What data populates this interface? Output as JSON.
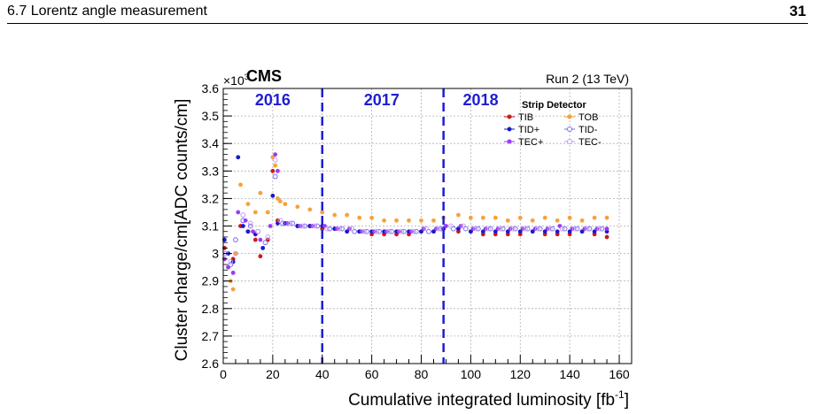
{
  "header": {
    "section_title": "6.7   Lorentz angle measurement",
    "page_number": "31"
  },
  "chart_data": {
    "type": "scatter",
    "experiment_label": "CMS",
    "run_label": "Run 2 (13 TeV)",
    "xlabel": "Cumulative integrated luminosity [fb",
    "xlabel_superscript": "-1",
    "xlabel_suffix": "]",
    "ylabel": "Cluster charge/cm[ADC counts/cm]",
    "y_multiplier": "×10",
    "y_multiplier_exponent": "3",
    "xlim": [
      0,
      165
    ],
    "ylim": [
      2.6,
      3.6
    ],
    "x_ticks": [
      0,
      20,
      40,
      60,
      80,
      100,
      120,
      140,
      160
    ],
    "x_tick_labels": [
      "0",
      "20",
      "40",
      "60",
      "80",
      "100",
      "120",
      "140",
      "160"
    ],
    "y_ticks": [
      2.6,
      2.7,
      2.8,
      2.9,
      3.0,
      3.1,
      3.2,
      3.3,
      3.4,
      3.5,
      3.6
    ],
    "y_tick_labels": [
      "2.6",
      "2.7",
      "2.8",
      "2.9",
      "3",
      "3.1",
      "3.2",
      "3.3",
      "3.4",
      "3.5",
      "3.6"
    ],
    "grid": true,
    "year_boundaries": [
      40,
      89
    ],
    "year_labels": [
      {
        "text": "2016",
        "x": 20
      },
      {
        "text": "2017",
        "x": 64
      },
      {
        "text": "2018",
        "x": 104
      }
    ],
    "year_color": "#1e1ed2",
    "legend": {
      "title": "Strip Detector",
      "placement": "top-right",
      "entries": [
        {
          "name": "TIB",
          "color": "#cc1a1a",
          "marker": "filled"
        },
        {
          "name": "TOB",
          "color": "#f7a13a",
          "marker": "filled"
        },
        {
          "name": "TID+",
          "color": "#1a1ac8",
          "marker": "filled"
        },
        {
          "name": "TID-",
          "color": "#7b6cf0",
          "marker": "open"
        },
        {
          "name": "TEC+",
          "color": "#9a3cf0",
          "marker": "filled"
        },
        {
          "name": "TEC-",
          "color": "#c49af7",
          "marker": "open"
        }
      ]
    },
    "series": [
      {
        "name": "TOB",
        "x": [
          0.5,
          2,
          3,
          4,
          5,
          7,
          10,
          13,
          15,
          18,
          20,
          21,
          22,
          23,
          25,
          30,
          35,
          40,
          45,
          50,
          55,
          60,
          65,
          70,
          75,
          80,
          85,
          89,
          95,
          100,
          105,
          110,
          115,
          120,
          125,
          130,
          135,
          140,
          145,
          150,
          155
        ],
        "y": [
          2.98,
          2.95,
          2.9,
          2.87,
          3.0,
          3.25,
          3.18,
          3.15,
          3.22,
          3.15,
          3.35,
          3.32,
          3.2,
          3.19,
          3.18,
          3.17,
          3.16,
          3.15,
          3.14,
          3.14,
          3.13,
          3.13,
          3.12,
          3.12,
          3.12,
          3.12,
          3.12,
          3.13,
          3.14,
          3.13,
          3.13,
          3.13,
          3.12,
          3.13,
          3.12,
          3.13,
          3.12,
          3.13,
          3.12,
          3.13,
          3.13
        ]
      },
      {
        "name": "TIB",
        "x": [
          0.5,
          2,
          4,
          7,
          10,
          13,
          15,
          18,
          20,
          22,
          25,
          30,
          35,
          40,
          45,
          50,
          55,
          60,
          65,
          70,
          75,
          80,
          85,
          89,
          95,
          100,
          105,
          110,
          115,
          120,
          125,
          130,
          135,
          140,
          145,
          150,
          155
        ],
        "y": [
          3.02,
          3.0,
          2.98,
          3.1,
          3.08,
          3.05,
          2.99,
          3.05,
          3.3,
          3.12,
          3.11,
          3.1,
          3.1,
          3.09,
          3.09,
          3.08,
          3.08,
          3.07,
          3.07,
          3.07,
          3.07,
          3.08,
          3.08,
          3.09,
          3.08,
          3.08,
          3.07,
          3.07,
          3.07,
          3.07,
          3.08,
          3.07,
          3.07,
          3.07,
          3.08,
          3.07,
          3.06
        ]
      },
      {
        "name": "TID+",
        "x": [
          0.5,
          2,
          4,
          6,
          8,
          10,
          13,
          16,
          20,
          22,
          25,
          30,
          35,
          40,
          45,
          50,
          55,
          60,
          65,
          70,
          75,
          80,
          85,
          89,
          95,
          100,
          105,
          110,
          115,
          120,
          125,
          130,
          135,
          140,
          145,
          150,
          155
        ],
        "y": [
          3.05,
          3.0,
          2.97,
          3.35,
          3.1,
          3.08,
          3.07,
          3.02,
          3.21,
          3.11,
          3.11,
          3.1,
          3.1,
          3.1,
          3.09,
          3.08,
          3.08,
          3.08,
          3.08,
          3.08,
          3.08,
          3.08,
          3.08,
          3.09,
          3.09,
          3.08,
          3.08,
          3.08,
          3.08,
          3.08,
          3.08,
          3.08,
          3.08,
          3.08,
          3.08,
          3.08,
          3.08
        ]
      },
      {
        "name": "TID-",
        "x": [
          1,
          3,
          5,
          8,
          11,
          14,
          17,
          21,
          24,
          28,
          33,
          38,
          43,
          48,
          53,
          58,
          63,
          68,
          73,
          78,
          83,
          88,
          93,
          98,
          103,
          108,
          113,
          118,
          123,
          128,
          133,
          138,
          143,
          148,
          153
        ],
        "y": [
          3.0,
          2.96,
          3.05,
          3.12,
          3.1,
          3.08,
          3.04,
          3.28,
          3.11,
          3.11,
          3.1,
          3.1,
          3.09,
          3.09,
          3.08,
          3.08,
          3.08,
          3.08,
          3.08,
          3.08,
          3.08,
          3.09,
          3.09,
          3.09,
          3.09,
          3.09,
          3.09,
          3.09,
          3.09,
          3.09,
          3.09,
          3.09,
          3.09,
          3.09,
          3.09
        ]
      },
      {
        "name": "TEC+",
        "x": [
          0.5,
          2,
          4,
          6,
          9,
          12,
          15,
          19,
          21,
          22,
          26,
          31,
          36,
          41,
          46,
          51,
          56,
          61,
          66,
          71,
          76,
          81,
          86,
          90,
          96,
          101,
          106,
          111,
          116,
          121,
          126,
          131,
          136,
          141,
          146,
          151,
          155
        ],
        "y": [
          2.98,
          2.95,
          2.93,
          3.15,
          3.12,
          3.08,
          3.05,
          3.1,
          3.36,
          3.3,
          3.11,
          3.1,
          3.1,
          3.1,
          3.09,
          3.09,
          3.08,
          3.08,
          3.08,
          3.08,
          3.08,
          3.09,
          3.09,
          3.1,
          3.1,
          3.09,
          3.09,
          3.09,
          3.09,
          3.09,
          3.09,
          3.09,
          3.1,
          3.09,
          3.09,
          3.09,
          3.09
        ]
      },
      {
        "name": "TEC-",
        "x": [
          1,
          3,
          5,
          8,
          11,
          14,
          18,
          21,
          23,
          27,
          32,
          37,
          42,
          47,
          52,
          57,
          62,
          67,
          72,
          77,
          82,
          87,
          92,
          97,
          102,
          107,
          112,
          117,
          122,
          127,
          132,
          137,
          142,
          147,
          152
        ],
        "y": [
          3.0,
          2.97,
          3.0,
          3.14,
          3.11,
          3.08,
          3.06,
          3.34,
          3.12,
          3.11,
          3.1,
          3.1,
          3.09,
          3.09,
          3.09,
          3.08,
          3.08,
          3.08,
          3.08,
          3.08,
          3.09,
          3.09,
          3.1,
          3.1,
          3.09,
          3.09,
          3.09,
          3.09,
          3.09,
          3.09,
          3.09,
          3.09,
          3.09,
          3.09,
          3.09
        ]
      }
    ]
  }
}
